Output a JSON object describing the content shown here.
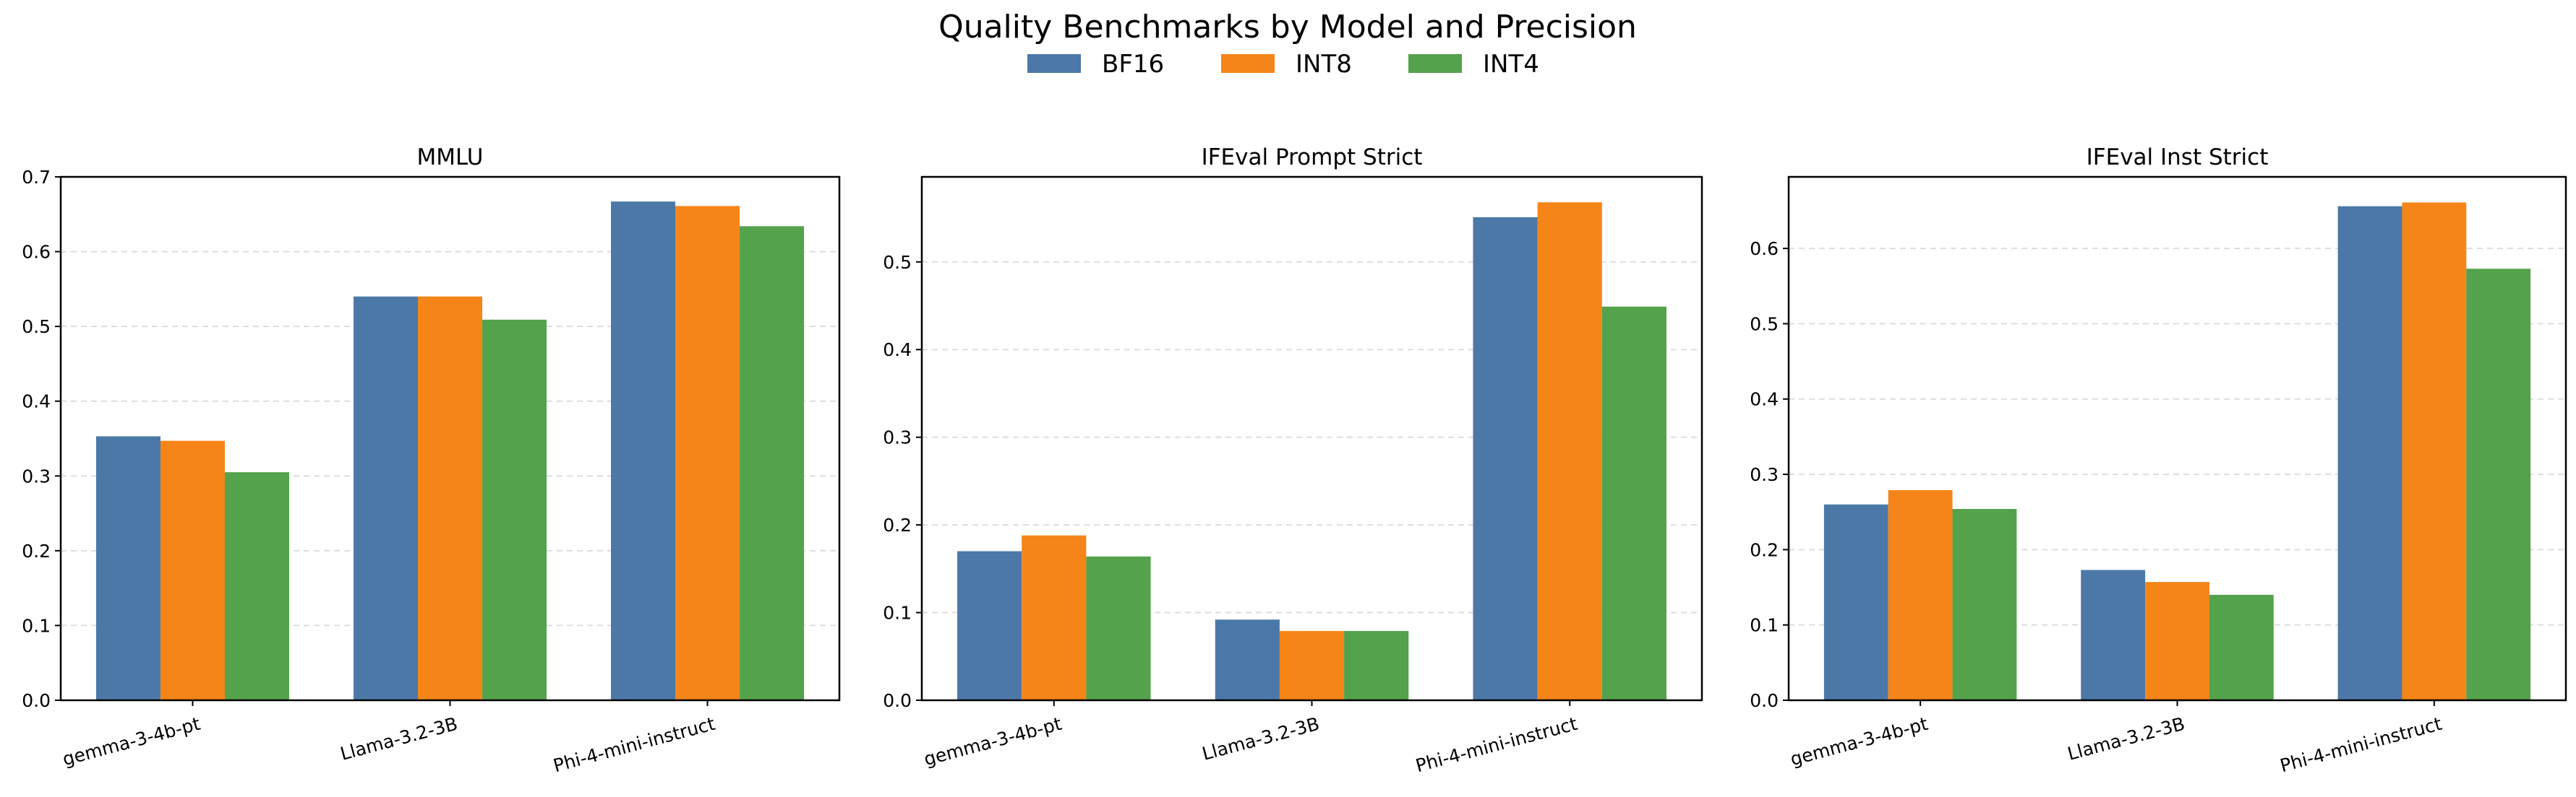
{
  "chart_data": {
    "title": "Quality Benchmarks by Model and Precision",
    "legend": {
      "placement": "top-center",
      "entries": [
        {
          "name": "BF16",
          "color": "#4c78a8"
        },
        {
          "name": "INT8",
          "color": "#f58518"
        },
        {
          "name": "INT4",
          "color": "#54a24b"
        }
      ]
    },
    "subplots": [
      {
        "type": "bar",
        "title": "MMLU",
        "categories": [
          "gemma-3-4b-pt",
          "Llama-3.2-3B",
          "Phi-4-mini-instruct"
        ],
        "series": [
          {
            "name": "BF16",
            "values": [
              0.353,
              0.54,
              0.667
            ]
          },
          {
            "name": "INT8",
            "values": [
              0.347,
              0.54,
              0.661
            ]
          },
          {
            "name": "INT4",
            "values": [
              0.305,
              0.509,
              0.634
            ]
          }
        ],
        "ylim": [
          0,
          0.7
        ],
        "yticks": [
          "0.0",
          "0.1",
          "0.2",
          "0.3",
          "0.4",
          "0.5",
          "0.6",
          "0.7"
        ],
        "grid": "y-dashed"
      },
      {
        "type": "bar",
        "title": "IFEval Prompt Strict",
        "categories": [
          "gemma-3-4b-pt",
          "Llama-3.2-3B",
          "Phi-4-mini-instruct"
        ],
        "series": [
          {
            "name": "BF16",
            "values": [
              0.17,
              0.092,
              0.551
            ]
          },
          {
            "name": "INT8",
            "values": [
              0.188,
              0.079,
              0.568
            ]
          },
          {
            "name": "INT4",
            "values": [
              0.164,
              0.079,
              0.449
            ]
          }
        ],
        "ylim": [
          0,
          0.597
        ],
        "yticks": [
          "0.0",
          "0.1",
          "0.2",
          "0.3",
          "0.4",
          "0.5"
        ],
        "grid": "y-dashed"
      },
      {
        "type": "bar",
        "title": "IFEval Inst Strict",
        "categories": [
          "gemma-3-4b-pt",
          "Llama-3.2-3B",
          "Phi-4-mini-instruct"
        ],
        "series": [
          {
            "name": "BF16",
            "values": [
              0.26,
              0.173,
              0.656
            ]
          },
          {
            "name": "INT8",
            "values": [
              0.279,
              0.157,
              0.661
            ]
          },
          {
            "name": "INT4",
            "values": [
              0.254,
              0.14,
              0.573
            ]
          }
        ],
        "ylim": [
          0,
          0.695
        ],
        "yticks": [
          "0.0",
          "0.1",
          "0.2",
          "0.3",
          "0.4",
          "0.5",
          "0.6"
        ],
        "grid": "y-dashed"
      }
    ]
  }
}
